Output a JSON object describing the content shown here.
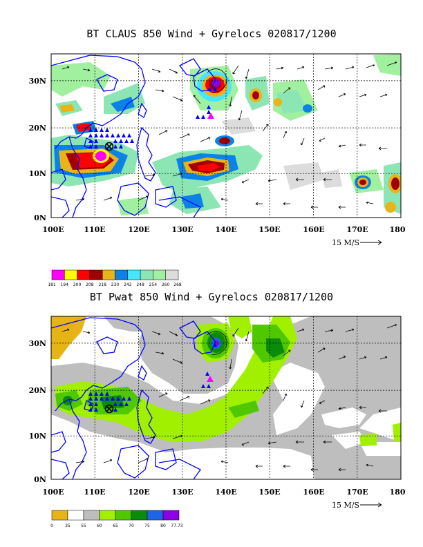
{
  "panels": [
    {
      "title": "BT CLAUS 850 Wind + Gyrelocs 020817/1200",
      "y_ticks": [
        "30N",
        "20N",
        "10N",
        "0N"
      ],
      "x_ticks": [
        "100E",
        "110E",
        "120E",
        "130E",
        "140E",
        "150E",
        "160E",
        "170E",
        "180"
      ],
      "wind_scale_label": "15 M/S",
      "legend": {
        "labels": [
          "181",
          "194",
          "200",
          "208",
          "218",
          "230",
          "242",
          "248",
          "254",
          "260",
          "268"
        ],
        "colors": [
          "#ff00ff",
          "#ffff00",
          "#ff0000",
          "#a00000",
          "#e8b418",
          "#0a82e6",
          "#46e6ff",
          "#8ce6b4",
          "#a0f0a0",
          "#dcdcdc"
        ]
      }
    },
    {
      "title": "BT Pwat 850 Wind + Gyrelocs 020817/1200",
      "y_ticks": [
        "30N",
        "20N",
        "10N",
        "0N"
      ],
      "x_ticks": [
        "100E",
        "110E",
        "120E",
        "130E",
        "140E",
        "150E",
        "160E",
        "170E",
        "180"
      ],
      "wind_scale_label": "15 M/S",
      "legend": {
        "labels": [
          "0",
          "35",
          "55",
          "60",
          "65",
          "70",
          "75",
          "80",
          "77.73"
        ],
        "colors": [
          "#e6b414",
          "#ffffff",
          "#bebebe",
          "#a0f000",
          "#50c800",
          "#0a8c0a",
          "#1e64e6",
          "#8c00e6"
        ]
      }
    }
  ],
  "colors": {
    "coast": "#0000ff",
    "marker_blue": "#0000ff",
    "marker_magenta": "#ff00ff"
  }
}
